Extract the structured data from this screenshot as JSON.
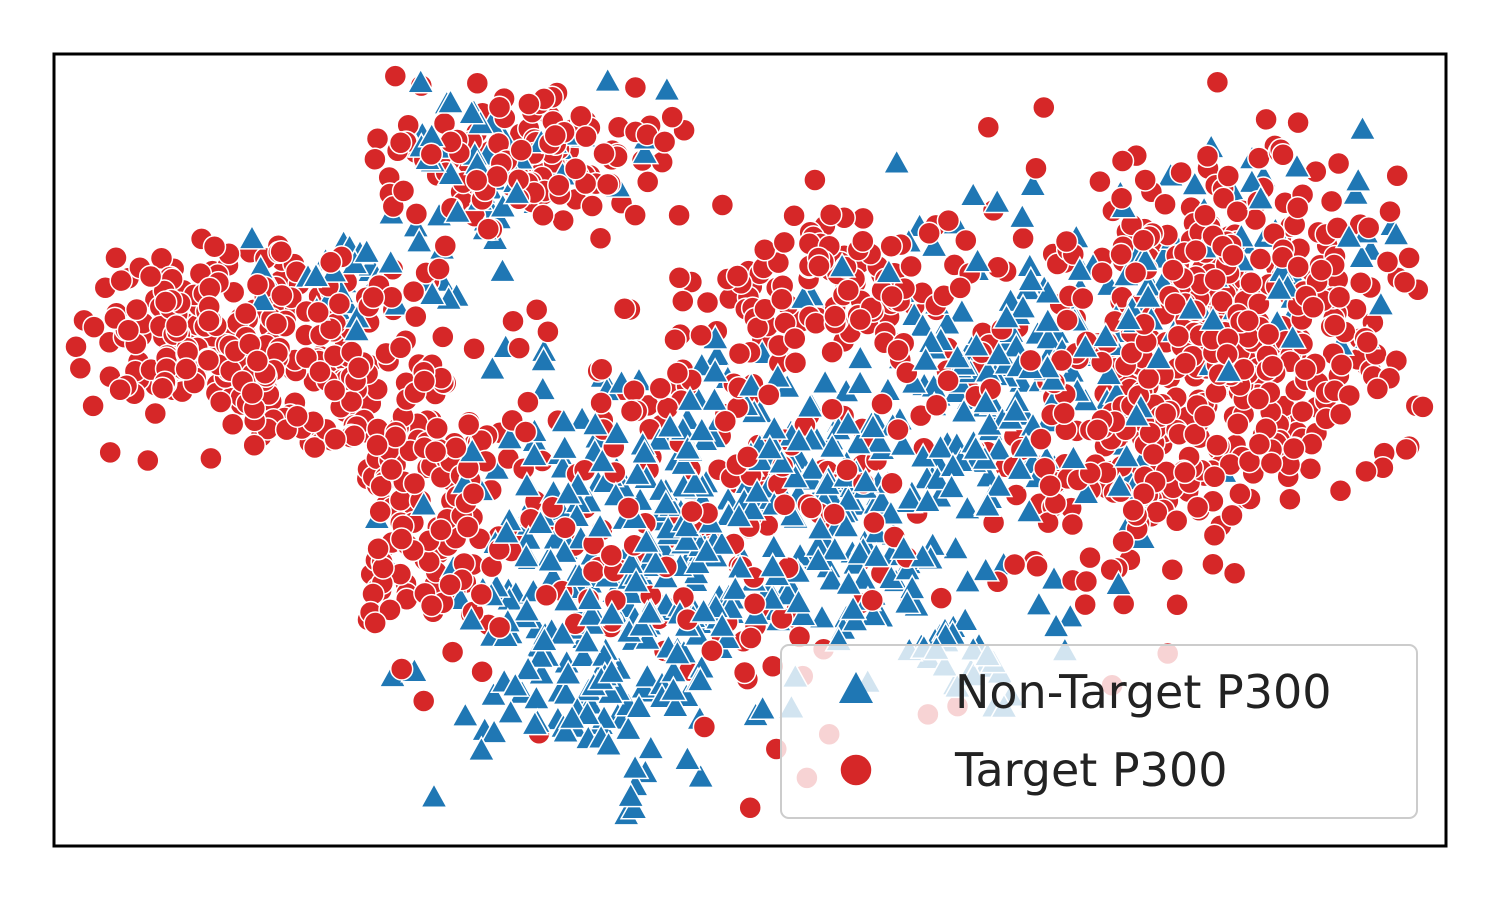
{
  "chart_data": {
    "type": "scatter",
    "title": "",
    "xlabel": "",
    "ylabel": "",
    "ticks_visible": false,
    "grid": false,
    "xlim": [
      -1.0,
      1.0
    ],
    "ylim": [
      -1.0,
      1.0
    ],
    "legend": {
      "position": "lower-right",
      "entries": [
        {
          "label": "Non-Target P300",
          "marker": "triangle"
        },
        {
          "label": "Target P300",
          "marker": "circle"
        }
      ]
    },
    "series": [
      {
        "name": "Non-Target P300",
        "marker": "triangle",
        "color": "#1f77b4",
        "approx_count": 900,
        "regions": [
          {
            "cx": -0.22,
            "cy": -0.38,
            "rx": 0.22,
            "ry": 0.42,
            "weight": 0.3
          },
          {
            "cx": 0.06,
            "cy": -0.12,
            "rx": 0.3,
            "ry": 0.35,
            "weight": 0.28
          },
          {
            "cx": 0.38,
            "cy": 0.18,
            "rx": 0.22,
            "ry": 0.38,
            "weight": 0.18
          },
          {
            "cx": -0.35,
            "cy": 0.72,
            "rx": 0.17,
            "ry": 0.17,
            "weight": 0.07
          },
          {
            "cx": -0.58,
            "cy": 0.42,
            "rx": 0.14,
            "ry": 0.12,
            "weight": 0.04
          },
          {
            "cx": 0.68,
            "cy": 0.45,
            "rx": 0.24,
            "ry": 0.32,
            "weight": 0.09
          },
          {
            "cx": 0.28,
            "cy": -0.48,
            "rx": 0.14,
            "ry": 0.14,
            "weight": 0.04
          }
        ]
      },
      {
        "name": "Target P300",
        "marker": "circle",
        "color": "#d62728",
        "approx_count": 1500,
        "regions": [
          {
            "cx": -0.72,
            "cy": 0.27,
            "rx": 0.22,
            "ry": 0.26,
            "weight": 0.18
          },
          {
            "cx": -0.33,
            "cy": 0.74,
            "rx": 0.2,
            "ry": 0.18,
            "weight": 0.1
          },
          {
            "cx": -0.48,
            "cy": -0.12,
            "rx": 0.16,
            "ry": 0.38,
            "weight": 0.12
          },
          {
            "cx": 0.7,
            "cy": 0.32,
            "rx": 0.24,
            "ry": 0.4,
            "weight": 0.28
          },
          {
            "cx": 0.55,
            "cy": -0.05,
            "rx": 0.18,
            "ry": 0.32,
            "weight": 0.1
          },
          {
            "cx": -0.02,
            "cy": -0.15,
            "rx": 0.3,
            "ry": 0.45,
            "weight": 0.14
          },
          {
            "cx": 0.12,
            "cy": 0.4,
            "rx": 0.2,
            "ry": 0.18,
            "weight": 0.08
          }
        ]
      }
    ]
  },
  "colors": {
    "non_target": "#1f77b4",
    "target": "#d62728",
    "axes_border": "#000000",
    "legend_border": "#cccccc",
    "marker_edge": "#ffffff"
  }
}
